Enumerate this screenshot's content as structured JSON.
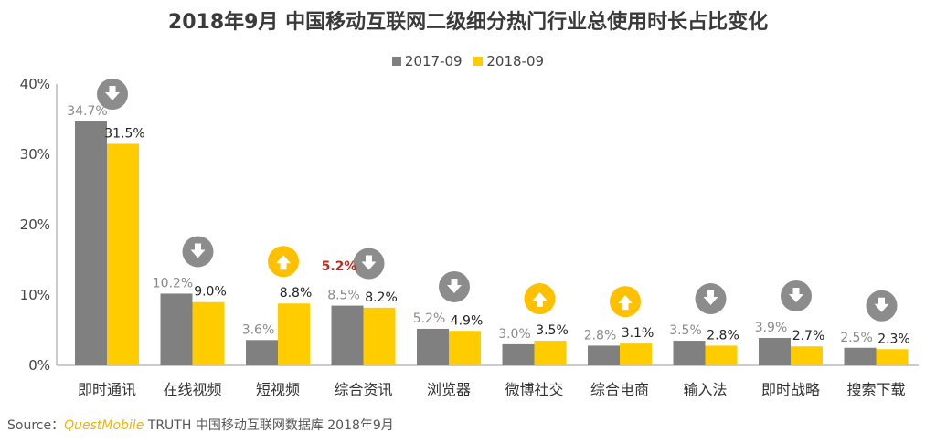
{
  "chart_data": {
    "type": "bar",
    "title": "2018年9月 中国移动互联网二级细分热门行业总使用时长占比变化",
    "categories": [
      "即时通讯",
      "在线视频",
      "短视频",
      "综合资讯",
      "浏览器",
      "微博社交",
      "综合电商",
      "输入法",
      "即时战略",
      "搜索下载"
    ],
    "series": [
      {
        "name": "2017-09",
        "color": "#808080",
        "values": [
          34.7,
          10.2,
          3.6,
          8.5,
          5.2,
          3.0,
          2.8,
          3.5,
          3.9,
          2.5
        ],
        "labels": [
          "34.7%",
          "10.2%",
          "3.6%",
          "8.5%",
          "5.2%",
          "3.0%",
          "2.8%",
          "3.5%",
          "3.9%",
          "2.5%"
        ]
      },
      {
        "name": "2018-09",
        "color": "#ffcc00",
        "values": [
          31.5,
          9.0,
          8.8,
          8.2,
          4.9,
          3.5,
          3.1,
          2.8,
          2.7,
          2.3
        ],
        "labels": [
          "31.5%",
          "9.0%",
          "8.8%",
          "8.2%",
          "4.9%",
          "3.5%",
          "3.1%",
          "2.8%",
          "2.7%",
          "2.3%"
        ]
      }
    ],
    "trend": [
      "down",
      "down",
      "up",
      "down",
      "down",
      "up",
      "up",
      "down",
      "down",
      "down"
    ],
    "trend_icons": {
      "up": "arrow-up-circle-icon",
      "down": "arrow-down-circle-icon"
    },
    "trend_colors": {
      "up": "#ffc000",
      "down": "#8c8c8c"
    },
    "highlight": {
      "category_index": 2,
      "text": "5.2%",
      "color": "#c0281e"
    },
    "ylim": [
      0,
      40
    ],
    "yticks": [
      0,
      10,
      20,
      30,
      40
    ],
    "ytick_labels": [
      "0%",
      "10%",
      "20%",
      "30%",
      "40%"
    ],
    "xlabel": "",
    "ylabel": "",
    "grid": false,
    "legend_position": "top-center"
  },
  "source": {
    "prefix": "Source：",
    "brand": "QuestMobile",
    "suffix": " TRUTH 中国移动互联网数据库 2018年9月"
  }
}
